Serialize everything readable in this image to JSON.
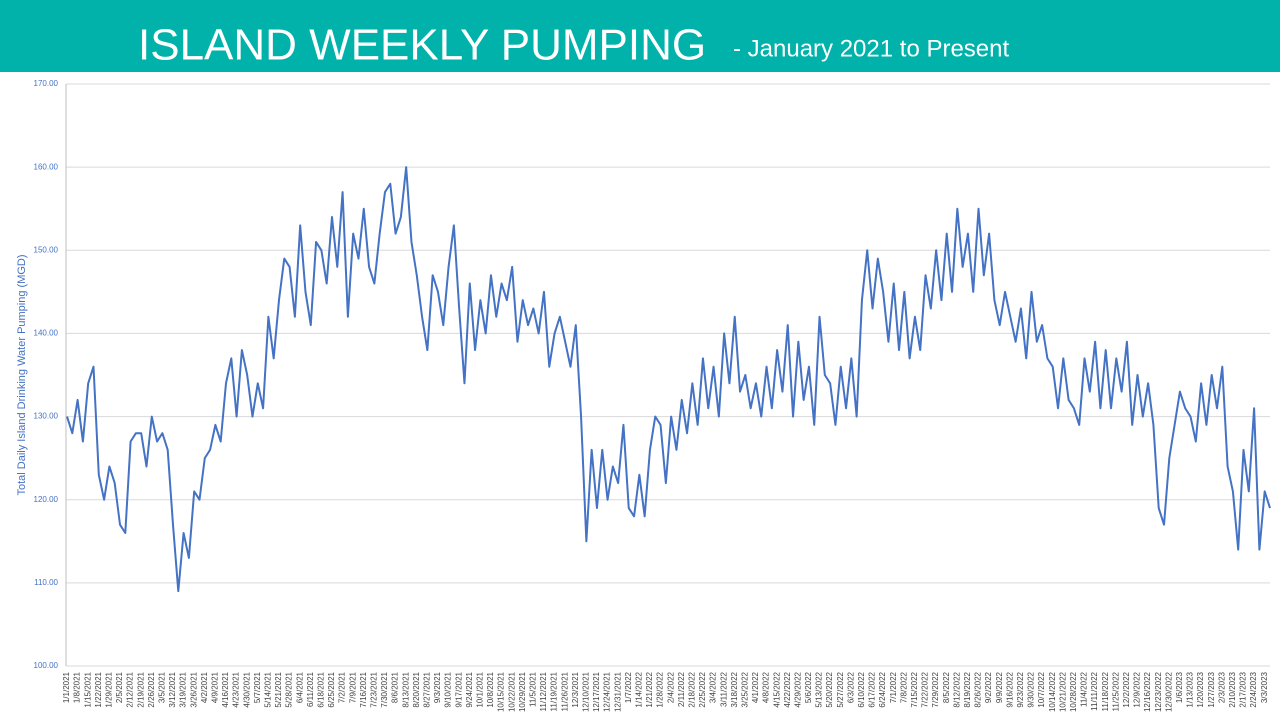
{
  "chart_data": {
    "type": "line",
    "title": "ISLAND WEEKLY PUMPING",
    "subtitle": "- January 2021 to Present",
    "y_label": "Total Daily Island Drinking Water Pumping (MGD)",
    "categories": [
      "1/1/2021",
      null,
      "1/8/2021",
      null,
      "1/15/2021",
      null,
      "1/22/2021",
      null,
      "1/29/2021",
      null,
      "2/5/2021",
      null,
      "2/12/2021",
      null,
      "2/19/2021",
      null,
      "2/26/2021",
      null,
      "3/5/2021",
      null,
      "3/12/2021",
      null,
      "3/19/2021",
      null,
      "3/26/2021",
      null,
      "4/2/2021",
      null,
      "4/9/2021",
      null,
      "4/16/2021",
      null,
      "4/23/2021",
      null,
      "4/30/2021",
      null,
      "5/7/2021",
      null,
      "5/14/2021",
      null,
      "5/21/2021",
      null,
      "5/28/2021",
      null,
      "6/4/2021",
      null,
      "6/11/2021",
      null,
      "6/18/2021",
      null,
      "6/25/2021",
      null,
      "7/2/2021",
      null,
      "7/9/2021",
      null,
      "7/16/2021",
      null,
      "7/23/2021",
      null,
      "7/30/2021",
      null,
      "8/6/2021",
      null,
      "8/13/2021",
      null,
      "8/20/2021",
      null,
      "8/27/2021",
      null,
      "9/3/2021",
      null,
      "9/10/2021",
      null,
      "9/17/2021",
      null,
      "9/24/2021",
      null,
      "10/1/2021",
      null,
      "10/8/2021",
      null,
      "10/15/2021",
      null,
      "10/22/2021",
      null,
      "10/29/2021",
      null,
      "11/5/2021",
      null,
      "11/12/2021",
      null,
      "11/19/2021",
      null,
      "11/26/2021",
      null,
      "12/3/2021",
      null,
      "12/10/2021",
      null,
      "12/17/2021",
      null,
      "12/24/2021",
      null,
      "12/31/2021",
      null,
      "1/7/2022",
      null,
      "1/14/2022",
      null,
      "1/21/2022",
      null,
      "1/28/2022",
      null,
      "2/4/2022",
      null,
      "2/11/2022",
      null,
      "2/18/2022",
      null,
      "2/25/2022",
      null,
      "3/4/2022",
      null,
      "3/11/2022",
      null,
      "3/18/2022",
      null,
      "3/25/2022",
      null,
      "4/1/2022",
      null,
      "4/8/2022",
      null,
      "4/15/2022",
      null,
      "4/22/2022",
      null,
      "4/29/2022",
      null,
      "5/6/2022",
      null,
      "5/13/2022",
      null,
      "5/20/2022",
      null,
      "5/27/2022",
      null,
      "6/3/2022",
      null,
      "6/10/2022",
      null,
      "6/17/2022",
      null,
      "6/24/2022",
      null,
      "7/1/2022",
      null,
      "7/8/2022",
      null,
      "7/15/2022",
      null,
      "7/22/2022",
      null,
      "7/29/2022",
      null,
      "8/5/2022",
      null,
      "8/12/2022",
      null,
      "8/19/2022",
      null,
      "8/26/2022",
      null,
      "9/2/2022",
      null,
      "9/9/2022",
      null,
      "9/16/2022",
      null,
      "9/23/2022",
      null,
      "9/30/2022",
      null,
      "10/7/2022",
      null,
      "10/14/2022",
      null,
      "10/21/2022",
      null,
      "10/28/2022",
      null,
      "11/4/2022",
      null,
      "11/11/2022",
      null,
      "11/18/2022",
      null,
      "11/25/2022",
      null,
      "12/2/2022",
      null,
      "12/9/2022",
      null,
      "12/16/2022",
      null,
      "12/23/2022",
      null,
      "12/30/2022",
      null,
      "1/6/2023",
      null,
      "1/13/2023",
      null,
      "1/20/2023",
      null,
      "1/27/2023",
      null,
      "2/3/2023",
      null,
      "2/10/2023",
      null,
      "2/17/2023",
      null,
      "2/24/2023",
      null,
      "3/3/2023",
      null
    ],
    "series": [
      {
        "name": "Pumping",
        "color": "#4472c4",
        "values": [
          130,
          128,
          132,
          127,
          134,
          136,
          123,
          120,
          124,
          122,
          117,
          116,
          127,
          128,
          128,
          124,
          130,
          127,
          128,
          126,
          117,
          109,
          116,
          113,
          121,
          120,
          125,
          126,
          129,
          127,
          134,
          137,
          130,
          138,
          135,
          130,
          134,
          131,
          142,
          137,
          144,
          149,
          148,
          142,
          153,
          145,
          141,
          151,
          150,
          146,
          154,
          148,
          157,
          142,
          152,
          149,
          155,
          148,
          146,
          152,
          157,
          158,
          152,
          154,
          160,
          151,
          147,
          142,
          138,
          147,
          145,
          141,
          148,
          153,
          143,
          134,
          146,
          138,
          144,
          140,
          147,
          142,
          146,
          144,
          148,
          139,
          144,
          141,
          143,
          140,
          145,
          136,
          140,
          142,
          139,
          136,
          141,
          130,
          115,
          126,
          119,
          126,
          120,
          124,
          122,
          129,
          119,
          118,
          123,
          118,
          126,
          130,
          129,
          122,
          130,
          126,
          132,
          128,
          134,
          129,
          137,
          131,
          136,
          130,
          140,
          134,
          142,
          133,
          135,
          131,
          134,
          130,
          136,
          131,
          138,
          133,
          141,
          130,
          139,
          132,
          136,
          129,
          142,
          135,
          134,
          129,
          136,
          131,
          137,
          130,
          144,
          150,
          143,
          149,
          145,
          139,
          146,
          138,
          145,
          137,
          142,
          138,
          147,
          143,
          150,
          144,
          152,
          145,
          155,
          148,
          152,
          145,
          155,
          147,
          152,
          144,
          141,
          145,
          142,
          139,
          143,
          137,
          145,
          139,
          141,
          137,
          136,
          131,
          137,
          132,
          131,
          129,
          137,
          133,
          139,
          131,
          138,
          131,
          137,
          133,
          139,
          129,
          135,
          130,
          134,
          129,
          119,
          117,
          125,
          129,
          133,
          131,
          130,
          127,
          134,
          129,
          135,
          131,
          136,
          124,
          121,
          114,
          126,
          121,
          131,
          114,
          121,
          119
        ]
      }
    ],
    "ylim": [
      100,
      170
    ],
    "yticks": [
      {
        "value": 100,
        "label": "100.00"
      },
      {
        "value": 110,
        "label": "110.00"
      },
      {
        "value": 120,
        "label": "120.00"
      },
      {
        "value": 130,
        "label": "130.00"
      },
      {
        "value": 140,
        "label": "140.00"
      },
      {
        "value": 150,
        "label": "150.00"
      },
      {
        "value": 160,
        "label": "160.00"
      },
      {
        "value": 170,
        "label": "170.00"
      }
    ],
    "grid": true
  }
}
